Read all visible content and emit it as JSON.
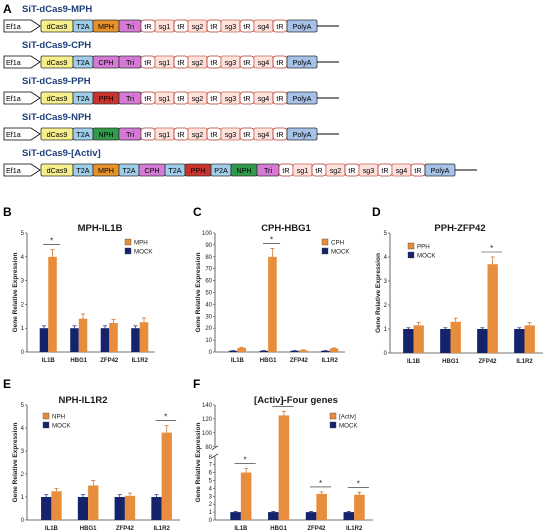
{
  "panel_a": {
    "letter": "A",
    "constructs": [
      {
        "name": "SiT-dCas9-MPH",
        "blocks": [
          "Ef1a",
          "dCas9",
          "T2A",
          "MPH",
          "Tri",
          "tR",
          "sg1",
          "tR",
          "sg2",
          "tR",
          "sg3",
          "tR",
          "sg4",
          "tR",
          "PolyA"
        ]
      },
      {
        "name": "SiT-dCas9-CPH",
        "blocks": [
          "Ef1a",
          "dCas9",
          "T2A",
          "CPH",
          "Tri",
          "tR",
          "sg1",
          "tR",
          "sg2",
          "tR",
          "sg3",
          "tR",
          "sg4",
          "tR",
          "PolyA"
        ]
      },
      {
        "name": "SiT-dCas9-PPH",
        "blocks": [
          "Ef1a",
          "dCas9",
          "T2A",
          "PPH",
          "Tri",
          "tR",
          "sg1",
          "tR",
          "sg2",
          "tR",
          "sg3",
          "tR",
          "sg4",
          "tR",
          "PolyA"
        ]
      },
      {
        "name": "SiT-dCas9-NPH",
        "blocks": [
          "Ef1a",
          "dCas9",
          "T2A",
          "NPH",
          "Tri",
          "tR",
          "sg1",
          "tR",
          "sg2",
          "tR",
          "sg3",
          "tR",
          "sg4",
          "tR",
          "PolyA"
        ]
      },
      {
        "name": "SiT-dCas9-[Activ]",
        "blocks": [
          "Ef1a",
          "dCas9",
          "T2A",
          "MPH",
          "T2A",
          "CPH",
          "T2A",
          "PPH",
          "P2A",
          "NPH",
          "Tri",
          "tR",
          "sg1",
          "tR",
          "sg2",
          "tR",
          "sg3",
          "tR",
          "sg4",
          "tR",
          "PolyA"
        ]
      }
    ],
    "colors": {
      "Ef1a": "#ffffff",
      "dCas9": "#f6ef8c",
      "T2A": "#9fcdea",
      "P2A": "#9fcdea",
      "MPH": "#e8922a",
      "CPH": "#d57bd7",
      "PPH": "#c8342c",
      "NPH": "#2e9a4a",
      "Tri": "#d57bd7",
      "tR": "#ffffff",
      "sg": "#ffe1dc",
      "PolyA": "#a6c2e8"
    }
  },
  "chart_data": [
    {
      "letter": "B",
      "type": "bar",
      "title": "MPH-IL1B",
      "categories": [
        "IL1B",
        "HBG1",
        "ZFP42",
        "IL1R2"
      ],
      "ylabel": "Gene Relative Expression",
      "ylim": [
        0,
        5
      ],
      "yticks": [
        0,
        1,
        2,
        3,
        4,
        5
      ],
      "series": [
        {
          "name": "MOCK",
          "values": [
            1,
            1,
            1,
            1
          ],
          "err": [
            0.1,
            0.1,
            0.1,
            0.1
          ]
        },
        {
          "name": "MPH",
          "values": [
            4.0,
            1.4,
            1.22,
            1.25
          ],
          "err": [
            0.3,
            0.2,
            0.15,
            0.18
          ]
        }
      ],
      "significant": [
        0
      ],
      "legend": [
        "MPH",
        "MOCK"
      ]
    },
    {
      "letter": "C",
      "type": "bar",
      "title": "CPH-HBG1",
      "categories": [
        "IL1B",
        "HBG1",
        "ZFP42",
        "IL1R2"
      ],
      "ylabel": "Gene Relative Expression",
      "ylim": [
        0,
        100
      ],
      "yticks": [
        0,
        10,
        20,
        30,
        40,
        50,
        60,
        70,
        80,
        90,
        100
      ],
      "series": [
        {
          "name": "MOCK",
          "values": [
            1,
            1,
            1,
            1
          ],
          "err": [
            0.2,
            0.2,
            0.2,
            0.2
          ]
        },
        {
          "name": "CPH",
          "values": [
            3.5,
            80,
            1.5,
            3.0
          ],
          "err": [
            0.5,
            7,
            0.3,
            0.4
          ]
        }
      ],
      "significant": [
        1
      ],
      "legend": [
        "CPH",
        "MOCK"
      ]
    },
    {
      "letter": "D",
      "type": "bar",
      "title": "PPH-ZFP42",
      "categories": [
        "IL1B",
        "HBG1",
        "ZFP42",
        "IL1R2"
      ],
      "ylabel": "Gene Relative Expression",
      "ylim": [
        0,
        5
      ],
      "yticks": [
        0,
        1,
        2,
        3,
        4,
        5
      ],
      "series": [
        {
          "name": "MOCK",
          "values": [
            1,
            1,
            1,
            1
          ],
          "err": [
            0.05,
            0.05,
            0.05,
            0.05
          ]
        },
        {
          "name": "PPH",
          "values": [
            1.15,
            1.3,
            3.7,
            1.15
          ],
          "err": [
            0.12,
            0.15,
            0.3,
            0.12
          ]
        }
      ],
      "significant": [
        2
      ],
      "legend": [
        "PPH",
        "MOCK"
      ]
    },
    {
      "letter": "E",
      "type": "bar",
      "title": "NPH-IL1R2",
      "categories": [
        "IL1B",
        "HBG1",
        "ZFP42",
        "IL1R2"
      ],
      "ylabel": "Gene Relative Expression",
      "ylim": [
        0,
        5
      ],
      "yticks": [
        0,
        1,
        2,
        3,
        4,
        5
      ],
      "series": [
        {
          "name": "MOCK",
          "values": [
            1,
            1,
            1,
            1
          ],
          "err": [
            0.1,
            0.1,
            0.1,
            0.1
          ]
        },
        {
          "name": "NPH",
          "values": [
            1.25,
            1.5,
            1.05,
            3.8
          ],
          "err": [
            0.12,
            0.22,
            0.12,
            0.3
          ]
        }
      ],
      "significant": [
        3
      ],
      "legend": [
        "NPH",
        "MOCK"
      ]
    },
    {
      "letter": "F",
      "type": "bar",
      "title": "[Activ]-Four genes",
      "categories": [
        "IL1B",
        "HBG1",
        "ZFP42",
        "IL1R2"
      ],
      "ylabel": "Gene Relative Expression",
      "broken_axis": true,
      "yticks": [
        0,
        1,
        2,
        3,
        4,
        5,
        6,
        7,
        8,
        80,
        100,
        120,
        140
      ],
      "series": [
        {
          "name": "MOCK",
          "values": [
            1,
            1,
            1,
            1
          ],
          "err": [
            0.08,
            0.08,
            0.08,
            0.08
          ]
        },
        {
          "name": "[Activ]",
          "values": [
            6.0,
            125,
            3.3,
            3.2
          ],
          "err": [
            0.5,
            6,
            0.25,
            0.3
          ]
        }
      ],
      "significant": [
        0,
        1,
        2,
        3
      ],
      "legend": [
        "[Activ]",
        "MOCK"
      ]
    }
  ],
  "series_colors": {
    "treatment": "#e88d3b",
    "mock": "#14236b"
  }
}
